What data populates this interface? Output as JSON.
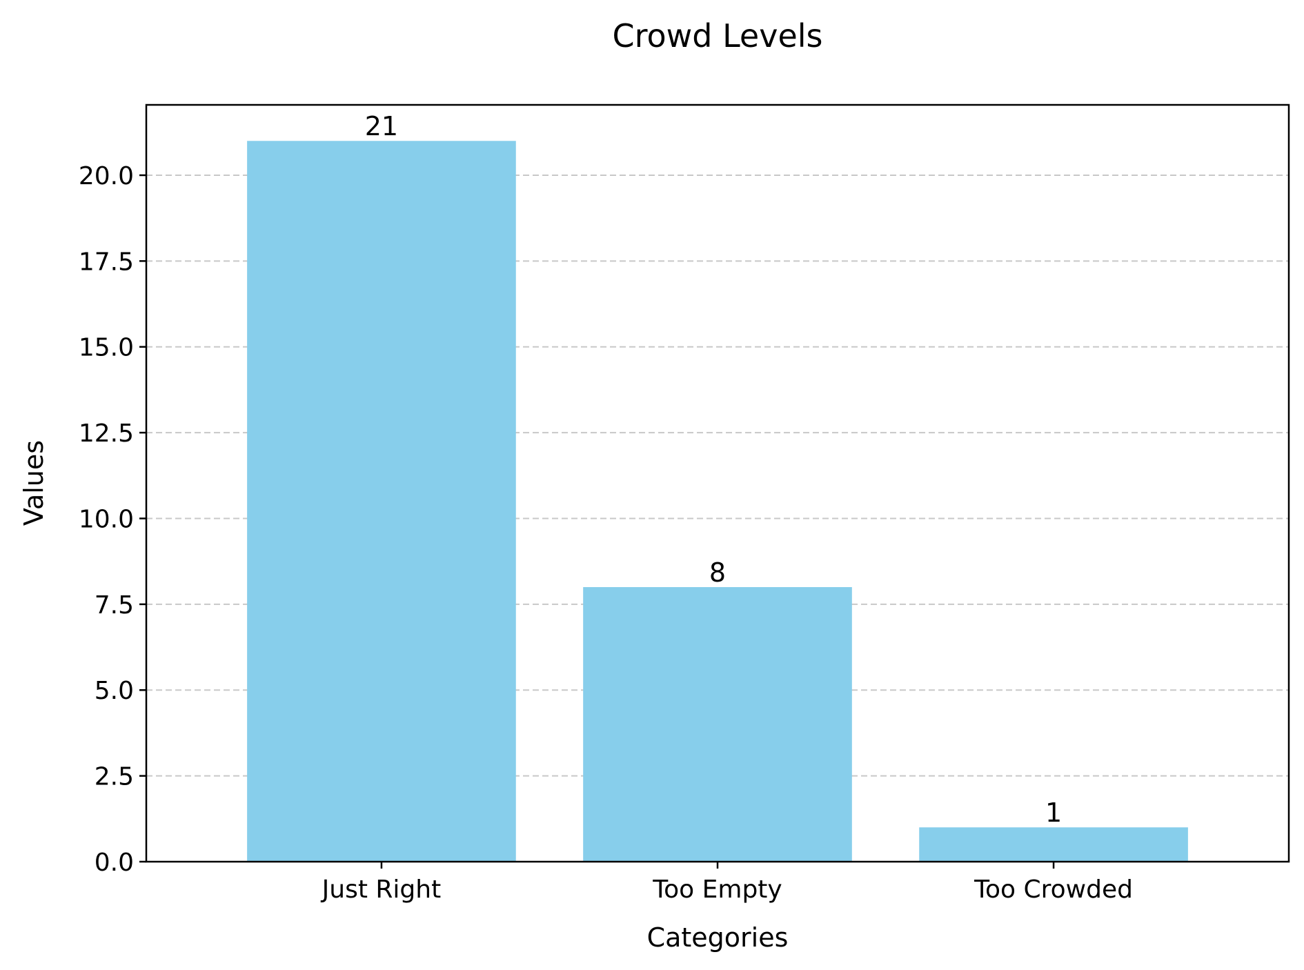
{
  "chart_data": {
    "type": "bar",
    "title": "Crowd Levels",
    "xlabel": "Categories",
    "ylabel": "Values",
    "categories": [
      "Just Right",
      "Too Empty",
      "Too Crowded"
    ],
    "values": [
      21,
      8,
      1
    ],
    "data_labels": [
      "21",
      "8",
      "1"
    ],
    "ylim": [
      0,
      22.05
    ],
    "yticks": [
      0,
      2.5,
      5,
      7.5,
      10,
      12.5,
      15,
      17.5,
      20
    ],
    "ytick_labels": [
      "0.0",
      "2.5",
      "5.0",
      "7.5",
      "10.0",
      "12.5",
      "15.0",
      "17.5",
      "20.0"
    ],
    "grid": {
      "axis": "y",
      "style": "dashed",
      "color": "#c8c8c8"
    },
    "bar_color": "#87CEEB",
    "legend": "none"
  }
}
